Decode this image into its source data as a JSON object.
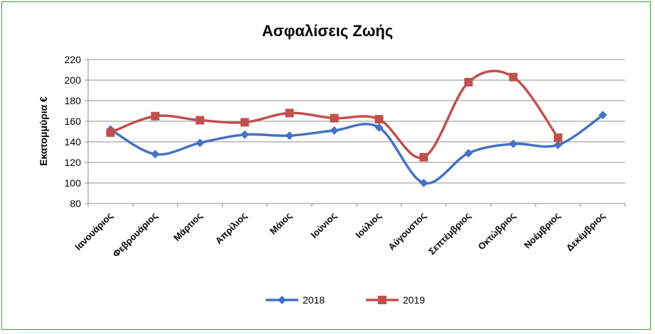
{
  "chart_data": {
    "type": "line",
    "title": "Ασφαλίσεις Ζωής",
    "xlabel": "",
    "ylabel": "Εκατομμύρια  €",
    "ylim": [
      80,
      220
    ],
    "yticks": [
      80,
      100,
      120,
      140,
      160,
      180,
      200,
      220
    ],
    "grid": true,
    "legend_position": "bottom",
    "categories": [
      "Ιανουάριος",
      "Φεβρουάριος",
      "Μάρτιος",
      "Απρίλιος",
      "Μάιος",
      "Ιούνιος",
      "Ιούλιος",
      "Αύγουστος",
      "Σεπτέμβριος",
      "Οκτώβριος",
      "Νοέμβριος",
      "Δεκέμβριος"
    ],
    "series": [
      {
        "name": "2018",
        "color": "#4472c4",
        "marker": "diamond",
        "values": [
          152,
          128,
          139,
          147,
          146,
          151,
          154,
          100,
          129,
          138,
          137,
          166
        ]
      },
      {
        "name": "2019",
        "color": "#c0504d",
        "marker": "square",
        "values": [
          149,
          165,
          161,
          159,
          168,
          163,
          162,
          125,
          198,
          203,
          144,
          null
        ]
      }
    ]
  }
}
